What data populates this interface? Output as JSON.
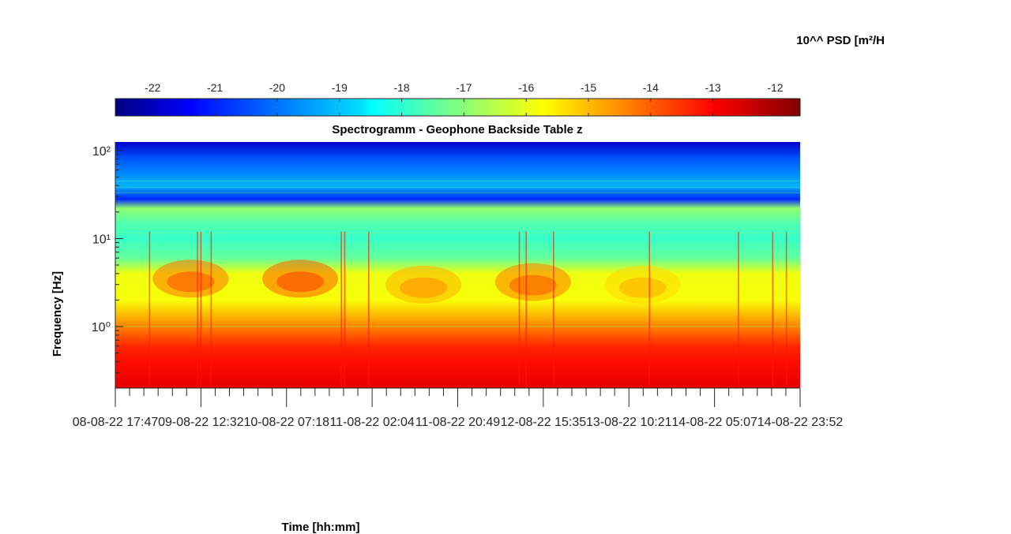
{
  "chart_data": {
    "type": "heatmap",
    "title": "Spectrogramm - Geophone Backside Table z",
    "xlabel": "Time [hh:mm]",
    "ylabel": "Frequency [Hz]",
    "colorbar": {
      "label": "10^^ PSD [m²/H",
      "ticks": [
        -22,
        -21,
        -20,
        -19,
        -18,
        -17,
        -16,
        -15,
        -14,
        -13,
        -12
      ],
      "tick_labels": [
        "-22",
        "-21",
        "-20",
        "-19",
        "-18",
        "-17",
        "-16",
        "-15",
        "-14",
        "-13",
        "-12"
      ],
      "range": [
        -22.6,
        -11.6
      ],
      "colormap": "jet",
      "placement": "top"
    },
    "x_ticks": [
      "08-08-22 17:47",
      "09-08-22 12:32",
      "10-08-22 07:18",
      "11-08-22 02:04",
      "11-08-22 20:49",
      "12-08-22 15:35",
      "13-08-22 10:21",
      "14-08-22 05:07",
      "14-08-22 23:52"
    ],
    "x_tick_labels": [
      "08-08-22 17:47",
      "09-08-22 12:32",
      "10-08-22 07:18",
      "11-08-22 02:04",
      "11-08-22 20:49",
      "12-08-22 15:35",
      "13-08-22 10:21",
      "14-08-22 05:07",
      "14-08-22 23:52"
    ],
    "y_scale": "log",
    "y_ticks": [
      1,
      10,
      100
    ],
    "y_tick_labels": [
      "10⁰",
      "10¹",
      "10²"
    ],
    "ylim": [
      0.2,
      125
    ],
    "grid": false,
    "features": {
      "band_rows_log10psd": [
        {
          "freq_hz": 125,
          "value": -21.8
        },
        {
          "freq_hz": 80,
          "value": -20.3
        },
        {
          "freq_hz": 40,
          "value": -19.3
        },
        {
          "freq_hz": 28,
          "value": -20.8
        },
        {
          "freq_hz": 22,
          "value": -16.9
        },
        {
          "freq_hz": 15,
          "value": -17.6
        },
        {
          "freq_hz": 10,
          "value": -17.9
        },
        {
          "freq_hz": 6,
          "value": -17.4
        },
        {
          "freq_hz": 4,
          "value": -15.9
        },
        {
          "freq_hz": 2,
          "value": -15.8
        },
        {
          "freq_hz": 1,
          "value": -14.4
        },
        {
          "freq_hz": 0.6,
          "value": -13.4
        },
        {
          "freq_hz": 0.4,
          "value": -13.1
        },
        {
          "freq_hz": 0.2,
          "value": -12.7
        }
      ],
      "daytime_bursts_1_6hz": [
        {
          "center_fraction": 0.11,
          "freq_hz": 3.5,
          "value": -14.2
        },
        {
          "center_fraction": 0.27,
          "freq_hz": 3.5,
          "value": -14.0
        },
        {
          "center_fraction": 0.45,
          "freq_hz": 3.0,
          "value": -14.9
        },
        {
          "center_fraction": 0.61,
          "freq_hz": 3.2,
          "value": -14.3
        },
        {
          "center_fraction": 0.77,
          "freq_hz": 3.0,
          "value": -15.3
        }
      ]
    }
  }
}
